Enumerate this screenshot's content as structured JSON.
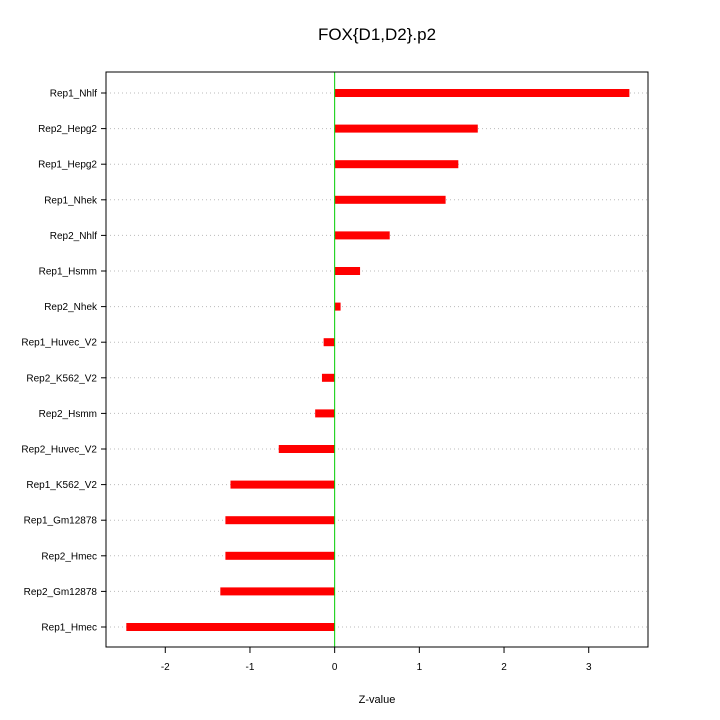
{
  "chart_data": {
    "type": "bar",
    "orientation": "horizontal",
    "title": "FOX{D1,D2}.p2",
    "xlabel": "Z-value",
    "ylabel": "",
    "xlim": [
      -2.7,
      3.7
    ],
    "xticks": [
      -2,
      -1,
      0,
      1,
      2,
      3
    ],
    "categories": [
      "Rep1_Nhlf",
      "Rep2_Hepg2",
      "Rep1_Hepg2",
      "Rep1_Nhek",
      "Rep2_Nhlf",
      "Rep1_Hsmm",
      "Rep2_Nhek",
      "Rep1_Huvec_V2",
      "Rep2_K562_V2",
      "Rep2_Hsmm",
      "Rep2_Huvec_V2",
      "Rep1_K562_V2",
      "Rep1_Gm12878",
      "Rep2_Hmec",
      "Rep2_Gm12878",
      "Rep1_Hmec"
    ],
    "values": [
      3.48,
      1.69,
      1.46,
      1.31,
      0.65,
      0.3,
      0.07,
      -0.13,
      -0.15,
      -0.23,
      -0.66,
      -1.23,
      -1.29,
      -1.29,
      -1.35,
      -2.46
    ],
    "grid": "horizontal-dotted",
    "colors": {
      "bar": "#ff0000",
      "zero_line": "#00cc00",
      "grid": "#bbbbbb",
      "frame": "#000000"
    }
  }
}
